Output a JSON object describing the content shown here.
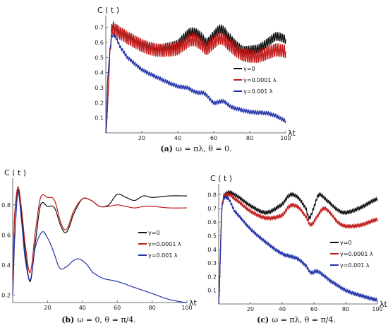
{
  "colors": {
    "black": "#111111",
    "red": "#c21a1a",
    "blue": "#2233aa",
    "axis": "#444444"
  },
  "chart_data": [
    {
      "type": "line",
      "panel": "a",
      "ylabel": "C ( t )",
      "xlabel": "λt",
      "caption_tag": "(a)",
      "caption": "ω = πλ, θ = 0.",
      "xlim": [
        0,
        100
      ],
      "ylim": [
        0,
        0.75
      ],
      "xticks": [
        "20",
        "40",
        "60",
        "80",
        "100"
      ],
      "yticks": [
        "0.1",
        "0.2",
        "0.3",
        "0.4",
        "0.5",
        "0.6",
        "0.7"
      ],
      "legend_position": "right",
      "series": [
        {
          "name": "γ=0",
          "color": "#111111",
          "x": [
            0,
            3,
            5,
            8,
            12,
            20,
            28,
            35,
            40,
            45,
            48,
            52,
            56,
            60,
            64,
            68,
            72,
            76,
            80,
            85,
            90,
            95,
            100
          ],
          "y": [
            0,
            0.65,
            0.69,
            0.67,
            0.64,
            0.59,
            0.56,
            0.57,
            0.59,
            0.65,
            0.67,
            0.65,
            0.6,
            0.65,
            0.69,
            0.64,
            0.59,
            0.55,
            0.55,
            0.56,
            0.6,
            0.64,
            0.62
          ],
          "osc": 0.03
        },
        {
          "name": "γ=0.0001 λ",
          "color": "#c21a1a",
          "x": [
            0,
            3,
            5,
            8,
            12,
            20,
            28,
            35,
            40,
            45,
            48,
            52,
            56,
            60,
            64,
            68,
            72,
            76,
            80,
            85,
            90,
            95,
            100
          ],
          "y": [
            0,
            0.64,
            0.68,
            0.66,
            0.63,
            0.58,
            0.55,
            0.55,
            0.56,
            0.6,
            0.62,
            0.6,
            0.56,
            0.6,
            0.63,
            0.59,
            0.55,
            0.52,
            0.51,
            0.51,
            0.53,
            0.55,
            0.54
          ],
          "osc": 0.045
        },
        {
          "name": "γ=0.001  λ",
          "color": "#2233aa",
          "x": [
            0,
            1,
            3,
            5,
            8,
            12,
            20,
            30,
            40,
            45,
            50,
            55,
            60,
            65,
            70,
            80,
            90,
            95,
            100
          ],
          "y": [
            0,
            0.35,
            0.62,
            0.64,
            0.57,
            0.5,
            0.42,
            0.36,
            0.31,
            0.3,
            0.27,
            0.26,
            0.2,
            0.21,
            0.17,
            0.14,
            0.13,
            0.11,
            0.08
          ],
          "osc": 0.012
        }
      ]
    },
    {
      "type": "line",
      "panel": "b",
      "ylabel": "C ( t )",
      "xlabel": "λt",
      "caption_tag": "(b)",
      "caption": "ω = 0, θ = π/4.",
      "xlim": [
        0,
        100
      ],
      "ylim": [
        0.15,
        0.95
      ],
      "xticks": [
        "20",
        "40",
        "60",
        "80",
        "100"
      ],
      "yticks": [
        "0.2",
        "0.4",
        "0.6",
        "0.8"
      ],
      "legend_position": "right",
      "series": [
        {
          "name": "γ=0",
          "color": "#111111",
          "x": [
            0,
            1,
            3,
            5,
            7,
            10,
            13,
            16,
            20,
            24,
            28,
            31,
            35,
            40,
            45,
            50,
            55,
            60,
            65,
            70,
            75,
            80,
            90,
            100
          ],
          "y": [
            0.3,
            0.7,
            0.9,
            0.75,
            0.5,
            0.29,
            0.55,
            0.8,
            0.79,
            0.78,
            0.65,
            0.62,
            0.74,
            0.84,
            0.83,
            0.79,
            0.8,
            0.87,
            0.85,
            0.83,
            0.86,
            0.85,
            0.86,
            0.86
          ],
          "osc": 0.0
        },
        {
          "name": "γ=0.0001 λ",
          "color": "#c21a1a",
          "x": [
            0,
            1,
            3,
            5,
            7,
            10,
            13,
            16,
            20,
            24,
            28,
            31,
            35,
            40,
            45,
            50,
            55,
            60,
            65,
            70,
            75,
            80,
            90,
            100
          ],
          "y": [
            0.3,
            0.72,
            0.92,
            0.78,
            0.55,
            0.35,
            0.62,
            0.85,
            0.85,
            0.83,
            0.67,
            0.64,
            0.76,
            0.84,
            0.83,
            0.79,
            0.79,
            0.8,
            0.79,
            0.78,
            0.79,
            0.79,
            0.78,
            0.78
          ],
          "osc": 0.0
        },
        {
          "name": "γ=0.001     λ",
          "color": "#2233aa",
          "x": [
            0,
            1,
            3,
            5,
            7,
            10,
            13,
            17,
            20,
            23,
            27,
            31,
            35,
            38,
            42,
            46,
            52,
            60,
            70,
            80,
            90,
            100
          ],
          "y": [
            0.2,
            0.55,
            0.88,
            0.7,
            0.45,
            0.3,
            0.52,
            0.62,
            0.58,
            0.5,
            0.38,
            0.39,
            0.43,
            0.44,
            0.41,
            0.35,
            0.31,
            0.29,
            0.25,
            0.21,
            0.17,
            0.15
          ],
          "osc": 0.0
        }
      ]
    },
    {
      "type": "line",
      "panel": "c",
      "ylabel": "C ( t )",
      "xlabel": "λt",
      "caption_tag": "(c)",
      "caption": "ω = πλ, θ = π/4.",
      "xlim": [
        0,
        100
      ],
      "ylim": [
        0,
        0.85
      ],
      "xticks": [
        "20",
        "40",
        "60",
        "80",
        "100"
      ],
      "yticks": [
        "0.1",
        "0.2",
        "0.3",
        "0.4",
        "0.5",
        "0.6",
        "0.7",
        "0.8"
      ],
      "legend_position": "right",
      "series": [
        {
          "name": "γ=0",
          "color": "#111111",
          "x": [
            0,
            2,
            5,
            10,
            20,
            30,
            40,
            45,
            50,
            55,
            57,
            60,
            63,
            68,
            75,
            80,
            90,
            100
          ],
          "y": [
            0,
            0.7,
            0.81,
            0.8,
            0.72,
            0.67,
            0.73,
            0.8,
            0.78,
            0.7,
            0.63,
            0.71,
            0.8,
            0.76,
            0.69,
            0.67,
            0.71,
            0.77
          ],
          "osc": 0.012
        },
        {
          "name": "γ=0.0001 λ",
          "color": "#c21a1a",
          "x": [
            0,
            2,
            5,
            10,
            20,
            30,
            40,
            45,
            50,
            55,
            58,
            62,
            66,
            70,
            75,
            80,
            90,
            100
          ],
          "y": [
            0,
            0.7,
            0.8,
            0.77,
            0.68,
            0.63,
            0.65,
            0.72,
            0.71,
            0.64,
            0.58,
            0.64,
            0.7,
            0.67,
            0.6,
            0.57,
            0.58,
            0.62
          ],
          "osc": 0.012
        },
        {
          "name": "γ=0.001  λ",
          "color": "#2233aa",
          "x": [
            0,
            2,
            5,
            10,
            20,
            30,
            40,
            45,
            50,
            55,
            58,
            62,
            66,
            70,
            80,
            90,
            100
          ],
          "y": [
            0,
            0.68,
            0.78,
            0.68,
            0.55,
            0.45,
            0.37,
            0.35,
            0.33,
            0.28,
            0.23,
            0.24,
            0.21,
            0.17,
            0.1,
            0.06,
            0.03
          ],
          "osc": 0.012
        }
      ]
    }
  ]
}
